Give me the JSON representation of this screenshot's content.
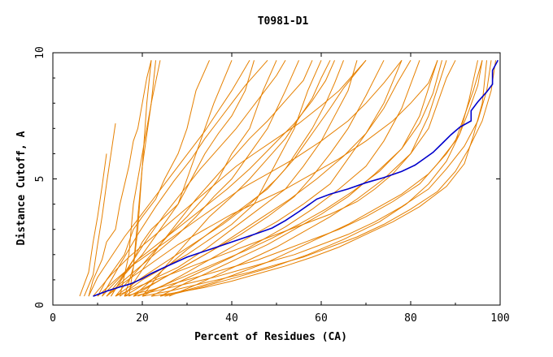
{
  "chart_data": {
    "type": "line",
    "title": "T0981-D1",
    "xlabel": "Percent of Residues (CA)",
    "ylabel": "Distance Cutoff, A",
    "xlim": [
      0,
      100
    ],
    "ylim": [
      0,
      10
    ],
    "x_ticks": [
      "0",
      "20",
      "40",
      "60",
      "80",
      "100"
    ],
    "y_ticks": [
      "0",
      "5",
      "10"
    ],
    "x_tick_values": [
      0,
      20,
      40,
      60,
      80,
      100
    ],
    "y_tick_values": [
      0,
      5,
      10
    ],
    "grid": false,
    "colors": {
      "highlight": "#0000cc",
      "background": "#e68000"
    },
    "highlight_series": {
      "x": [
        9,
        12,
        15,
        17.5,
        20,
        22,
        25,
        30,
        35,
        40,
        45,
        49,
        52,
        55,
        57,
        59,
        62,
        66,
        70,
        74,
        78,
        81,
        83,
        85,
        87,
        89,
        91,
        93.5,
        93.5,
        95,
        97,
        98.3,
        98.3,
        99.5
      ],
      "y": [
        0.35,
        0.55,
        0.72,
        0.85,
        1.05,
        1.25,
        1.5,
        1.9,
        2.2,
        2.5,
        2.8,
        3.05,
        3.35,
        3.7,
        3.95,
        4.2,
        4.4,
        4.6,
        4.85,
        5.05,
        5.3,
        5.55,
        5.8,
        6.05,
        6.4,
        6.75,
        7.05,
        7.3,
        7.7,
        8.05,
        8.45,
        8.75,
        9.3,
        9.7
      ]
    },
    "background_series": [
      {
        "x": [
          17,
          18,
          19,
          20,
          21,
          22
        ],
        "y": [
          0.35,
          1.5,
          3.5,
          5.5,
          8,
          9.7
        ]
      },
      {
        "x": [
          16,
          18,
          19,
          20,
          22,
          23
        ],
        "y": [
          0.35,
          1.5,
          3,
          5.5,
          8,
          9.7
        ]
      },
      {
        "x": [
          15,
          17,
          18,
          20,
          22,
          24
        ],
        "y": [
          0.35,
          2,
          4,
          6,
          8,
          9.7
        ]
      },
      {
        "x": [
          7,
          9,
          10,
          11,
          12,
          13,
          14
        ],
        "y": [
          0.35,
          1.2,
          2.4,
          3.5,
          4.8,
          6,
          7.2
        ]
      },
      {
        "x": [
          6,
          8,
          9,
          10,
          11,
          12
        ],
        "y": [
          0.35,
          1.3,
          2.5,
          3.5,
          4.7,
          6
        ]
      },
      {
        "x": [
          8,
          9,
          11,
          12,
          14,
          15,
          17,
          18,
          19,
          20,
          21,
          22
        ],
        "y": [
          0.35,
          1,
          1.8,
          2.5,
          3,
          4,
          5.5,
          6.5,
          7,
          8,
          9,
          9.7
        ]
      },
      {
        "x": [
          10,
          12,
          14,
          16,
          18,
          20,
          23,
          25,
          28,
          30,
          32,
          35
        ],
        "y": [
          0.35,
          1,
          1.5,
          2,
          3,
          3.5,
          4.2,
          5,
          6,
          7,
          8.5,
          9.7
        ]
      },
      {
        "x": [
          12,
          15,
          18,
          20,
          22,
          25,
          28,
          30,
          33,
          36,
          40
        ],
        "y": [
          0.35,
          1,
          1.8,
          2.5,
          3,
          3.5,
          4,
          5,
          6.5,
          8,
          9.7
        ]
      },
      {
        "x": [
          13,
          16,
          20,
          24,
          28,
          31,
          34,
          37,
          40,
          43,
          45
        ],
        "y": [
          0.35,
          1.2,
          2,
          3,
          4,
          5,
          6,
          6.8,
          7.5,
          8.5,
          9.7
        ]
      },
      {
        "x": [
          14,
          18,
          22,
          26,
          30,
          34,
          37,
          40,
          44,
          47,
          50
        ],
        "y": [
          0.35,
          1.2,
          2,
          2.8,
          3.5,
          4.3,
          5,
          6,
          7,
          8.5,
          9.7
        ]
      },
      {
        "x": [
          12,
          16,
          20,
          24,
          28,
          32,
          36,
          40,
          44,
          48,
          52,
          55
        ],
        "y": [
          0.35,
          1,
          1.6,
          2.2,
          2.8,
          3.5,
          4.3,
          5,
          6,
          7,
          8.5,
          9.7
        ]
      },
      {
        "x": [
          15,
          20,
          25,
          30,
          35,
          40,
          45,
          48,
          51,
          54,
          57,
          60
        ],
        "y": [
          0.35,
          1,
          1.5,
          2,
          2.6,
          3.2,
          4,
          5,
          6,
          7,
          8.5,
          9.7
        ]
      },
      {
        "x": [
          16,
          22,
          28,
          34,
          40,
          46,
          52,
          56,
          60,
          63,
          66,
          68
        ],
        "y": [
          0.35,
          1,
          1.5,
          2.2,
          3,
          3.8,
          4.6,
          5.5,
          6.5,
          7.5,
          8.5,
          9.7
        ]
      },
      {
        "x": [
          14,
          20,
          26,
          32,
          38,
          44,
          50,
          54,
          58,
          62,
          65,
          70
        ],
        "y": [
          0.35,
          1.1,
          1.8,
          2.5,
          3.2,
          4,
          5,
          5.8,
          6.8,
          7.8,
          8.6,
          9.7
        ]
      },
      {
        "x": [
          18,
          24,
          30,
          36,
          42,
          48,
          54,
          58,
          62,
          66,
          70,
          74
        ],
        "y": [
          0.35,
          1,
          1.6,
          2.2,
          2.8,
          3.5,
          4.3,
          5.1,
          6,
          7,
          8.3,
          9.7
        ]
      },
      {
        "x": [
          20,
          26,
          32,
          38,
          44,
          50,
          56,
          62,
          66,
          70,
          74,
          78
        ],
        "y": [
          0.35,
          0.9,
          1.5,
          2.1,
          2.7,
          3.3,
          4,
          4.8,
          5.8,
          6.8,
          8,
          9.7
        ]
      },
      {
        "x": [
          22,
          28,
          34,
          40,
          46,
          52,
          58,
          64,
          70,
          74,
          78,
          82
        ],
        "y": [
          0.35,
          0.9,
          1.4,
          1.9,
          2.5,
          3.1,
          3.8,
          4.6,
          5.5,
          6.5,
          7.8,
          9.7
        ]
      },
      {
        "x": [
          24,
          30,
          36,
          42,
          48,
          54,
          60,
          66,
          72,
          78,
          82,
          86
        ],
        "y": [
          0.35,
          0.9,
          1.4,
          1.9,
          2.4,
          3,
          3.6,
          4.3,
          5.2,
          6.2,
          7.5,
          9.7
        ]
      },
      {
        "x": [
          26,
          32,
          38,
          44,
          50,
          56,
          62,
          68,
          74,
          80,
          84,
          88
        ],
        "y": [
          0.35,
          0.8,
          1.3,
          1.8,
          2.3,
          2.9,
          3.5,
          4.2,
          5,
          6,
          7.5,
          9.7
        ]
      },
      {
        "x": [
          18,
          24,
          30,
          36,
          42,
          48,
          52,
          55,
          58,
          61,
          63,
          65
        ],
        "y": [
          0.35,
          1.3,
          2.2,
          3,
          3.8,
          4.6,
          5.4,
          6.2,
          7,
          8,
          8.8,
          9.7
        ]
      },
      {
        "x": [
          20,
          25,
          30,
          35,
          40,
          44,
          48,
          52,
          55,
          58,
          60,
          62
        ],
        "y": [
          0.35,
          1.5,
          2.5,
          3.5,
          4.3,
          5,
          5.8,
          6.6,
          7.4,
          8.2,
          9,
          9.7
        ]
      },
      {
        "x": [
          16,
          20,
          24,
          28,
          32,
          36,
          40,
          44,
          48,
          52,
          56,
          58
        ],
        "y": [
          0.35,
          1.4,
          2.4,
          3.3,
          4.2,
          5,
          5.8,
          6.6,
          7.3,
          8.1,
          8.9,
          9.7
        ]
      },
      {
        "x": [
          13,
          17,
          21,
          25,
          29,
          33,
          37,
          41,
          44,
          47,
          50,
          52
        ],
        "y": [
          0.35,
          1.5,
          2.6,
          3.6,
          4.5,
          5.4,
          6.2,
          7,
          7.7,
          8.4,
          9.1,
          9.7
        ]
      },
      {
        "x": [
          11,
          15,
          19,
          23,
          27,
          31,
          34,
          37,
          40,
          43,
          46,
          48
        ],
        "y": [
          0.35,
          1.6,
          2.8,
          3.9,
          4.9,
          5.8,
          6.6,
          7.3,
          8,
          8.7,
          9.3,
          9.7
        ]
      },
      {
        "x": [
          14,
          20,
          26,
          32,
          38,
          44,
          50,
          56,
          62,
          68,
          72,
          76,
          80,
          84,
          86,
          88,
          90
        ],
        "y": [
          0.35,
          0.8,
          1.2,
          1.6,
          2,
          2.4,
          2.8,
          3.2,
          3.6,
          4.1,
          4.6,
          5.2,
          6,
          7,
          8,
          9,
          9.7
        ]
      },
      {
        "x": [
          16,
          22,
          28,
          34,
          40,
          46,
          52,
          58,
          64,
          70,
          76,
          82,
          86,
          90,
          92,
          94,
          96
        ],
        "y": [
          0.35,
          0.6,
          0.9,
          1.2,
          1.5,
          1.8,
          2.2,
          2.6,
          3,
          3.5,
          4.1,
          4.8,
          5.6,
          6.5,
          7.5,
          8.5,
          9.7
        ]
      },
      {
        "x": [
          18,
          24,
          30,
          36,
          42,
          48,
          54,
          60,
          66,
          72,
          78,
          84,
          88,
          92,
          95,
          97,
          98
        ],
        "y": [
          0.35,
          0.6,
          0.85,
          1.1,
          1.4,
          1.7,
          2,
          2.4,
          2.8,
          3.3,
          3.9,
          4.6,
          5.4,
          6.3,
          7.3,
          8.5,
          9.7
        ]
      },
      {
        "x": [
          20,
          26,
          32,
          38,
          44,
          50,
          56,
          62,
          68,
          74,
          80,
          86,
          90,
          93,
          96,
          98,
          99
        ],
        "y": [
          0.35,
          0.55,
          0.8,
          1.05,
          1.3,
          1.6,
          1.9,
          2.3,
          2.7,
          3.2,
          3.8,
          4.5,
          5.3,
          6.2,
          7.3,
          8.5,
          9.7
        ]
      },
      {
        "x": [
          22,
          28,
          34,
          40,
          46,
          52,
          58,
          64,
          70,
          76,
          82,
          88,
          92,
          94,
          96,
          97
        ],
        "y": [
          0.35,
          0.5,
          0.7,
          0.95,
          1.25,
          1.55,
          1.9,
          2.3,
          2.8,
          3.3,
          3.9,
          4.7,
          5.6,
          6.7,
          8,
          9.7
        ]
      },
      {
        "x": [
          12,
          16,
          20,
          24,
          28,
          32,
          36,
          40,
          46,
          52,
          58,
          64,
          70,
          76,
          80,
          84,
          86
        ],
        "y": [
          0.35,
          0.9,
          1.4,
          1.9,
          2.4,
          2.8,
          3.2,
          3.6,
          4.1,
          4.6,
          5.2,
          5.8,
          6.5,
          7.3,
          8,
          8.8,
          9.7
        ]
      },
      {
        "x": [
          10,
          14,
          18,
          22,
          26,
          30,
          34,
          38,
          42,
          48,
          54,
          60,
          66,
          70,
          74,
          78
        ],
        "y": [
          0.35,
          1,
          1.6,
          2.1,
          2.6,
          3.1,
          3.6,
          4.1,
          4.6,
          5.2,
          5.8,
          6.5,
          7.3,
          8,
          8.8,
          9.7
        ]
      },
      {
        "x": [
          9,
          13,
          17,
          21,
          25,
          29,
          33,
          37,
          41,
          45,
          50,
          55,
          60,
          64,
          67,
          70
        ],
        "y": [
          0.35,
          1.2,
          1.9,
          2.5,
          3.1,
          3.7,
          4.3,
          4.9,
          5.5,
          6,
          6.6,
          7.2,
          7.9,
          8.5,
          9.1,
          9.7
        ]
      },
      {
        "x": [
          24,
          30,
          36,
          42,
          48,
          54,
          60,
          66,
          72,
          78,
          84,
          88,
          91,
          93,
          95,
          96
        ],
        "y": [
          0.35,
          0.6,
          0.9,
          1.3,
          1.7,
          2.2,
          2.7,
          3.2,
          3.8,
          4.4,
          5.2,
          6,
          6.8,
          7.7,
          8.7,
          9.7
        ]
      },
      {
        "x": [
          25,
          33,
          41,
          49,
          57,
          65,
          73,
          79,
          84,
          88,
          91,
          93,
          95
        ],
        "y": [
          0.35,
          0.7,
          1.1,
          1.5,
          2,
          2.6,
          3.3,
          4,
          4.8,
          5.7,
          6.8,
          8.1,
          9.7
        ]
      },
      {
        "x": [
          19,
          25,
          31,
          37,
          43,
          49,
          55,
          61,
          67,
          73,
          78,
          82,
          85,
          87
        ],
        "y": [
          0.35,
          0.8,
          1.25,
          1.7,
          2.15,
          2.65,
          3.2,
          3.8,
          4.5,
          5.3,
          6.2,
          7.2,
          8.4,
          9.7
        ]
      },
      {
        "x": [
          8,
          10,
          13,
          16,
          19,
          22,
          25,
          28,
          31,
          34,
          37,
          40,
          42,
          44
        ],
        "y": [
          0.35,
          1.1,
          1.9,
          2.7,
          3.4,
          4.1,
          4.8,
          5.5,
          6.2,
          6.9,
          7.7,
          8.5,
          9.1,
          9.7
        ]
      },
      {
        "x": [
          11,
          15,
          19,
          24,
          29,
          34,
          39,
          44,
          49,
          54,
          58,
          61,
          63
        ],
        "y": [
          0.35,
          1.1,
          1.8,
          2.5,
          3.2,
          3.9,
          4.6,
          5.4,
          6.3,
          7.2,
          8.1,
          8.9,
          9.7
        ]
      },
      {
        "x": [
          17,
          23,
          29,
          35,
          41,
          47,
          53,
          59,
          65,
          70,
          74,
          77,
          80
        ],
        "y": [
          0.35,
          0.9,
          1.5,
          2.1,
          2.8,
          3.5,
          4.2,
          5,
          5.9,
          6.8,
          7.8,
          8.8,
          9.7
        ]
      }
    ]
  }
}
